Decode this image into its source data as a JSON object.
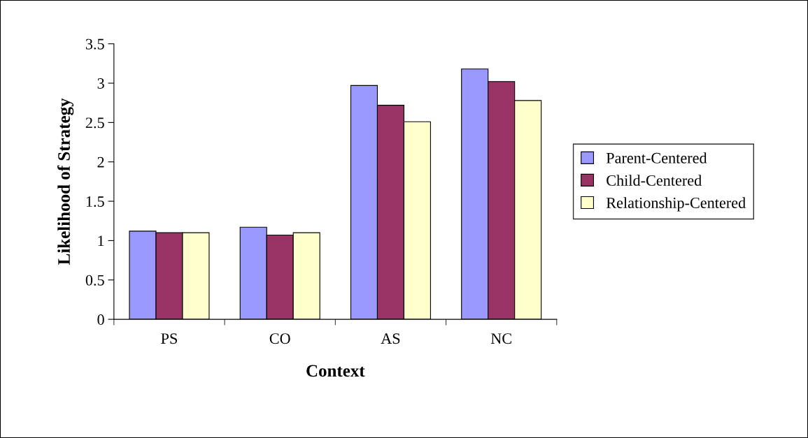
{
  "chart_data": {
    "type": "bar",
    "xlabel": "Context",
    "ylabel": "Likelihood of Strategy",
    "categories": [
      "PS",
      "CO",
      "AS",
      "NC"
    ],
    "series": [
      {
        "name": "Parent-Centered",
        "color": "#9999ff",
        "values": [
          1.12,
          1.17,
          2.97,
          3.18
        ]
      },
      {
        "name": "Child-Centered",
        "color": "#993366",
        "values": [
          1.1,
          1.07,
          2.72,
          3.02
        ]
      },
      {
        "name": "Relationship-Centered",
        "color": "#ffffcc",
        "values": [
          1.1,
          1.1,
          2.51,
          2.78
        ]
      }
    ],
    "ylim": [
      0,
      3.5
    ],
    "yticks": [
      0,
      0.5,
      1,
      1.5,
      2,
      2.5,
      3,
      3.5
    ],
    "grid": false,
    "legend": "right"
  }
}
